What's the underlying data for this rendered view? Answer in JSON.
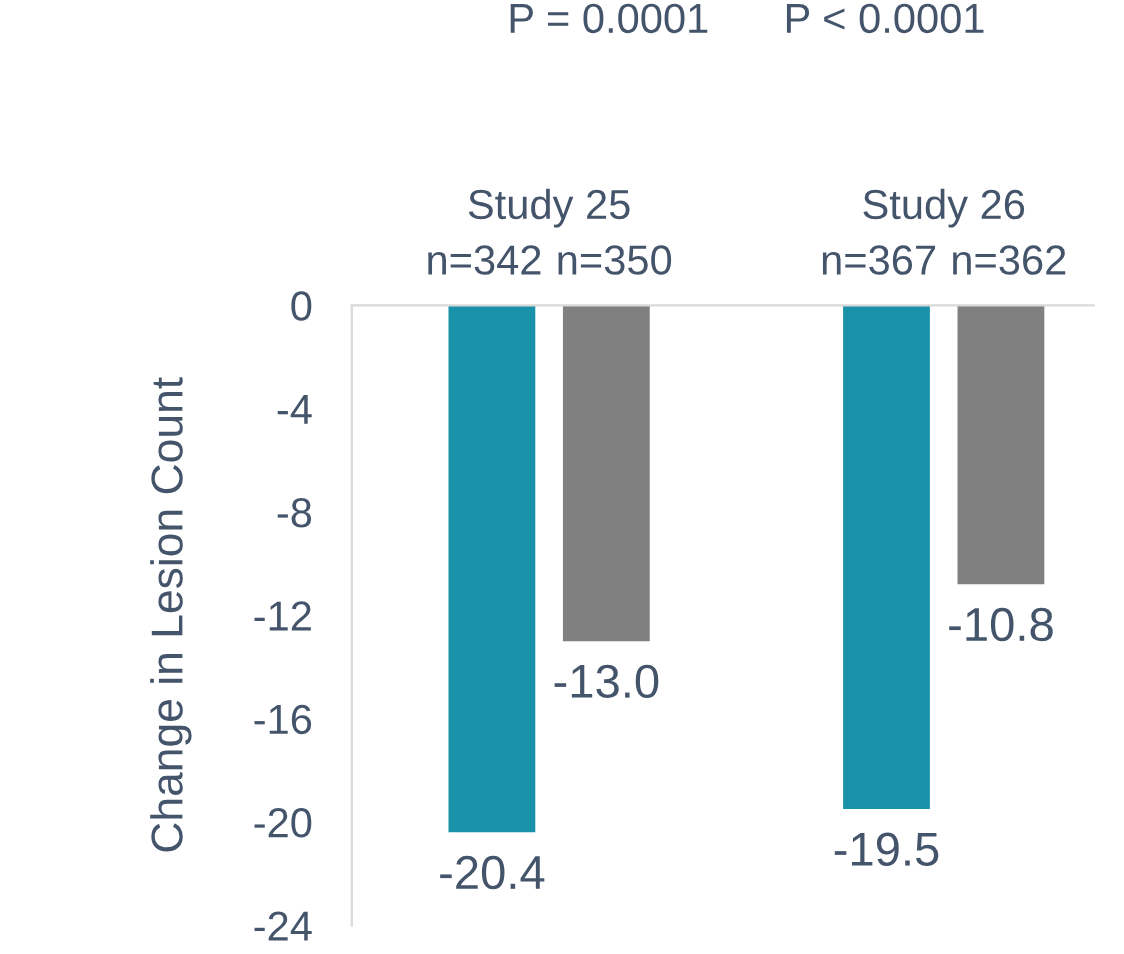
{
  "chart_data": {
    "type": "bar",
    "ylabel": "Change in Lesion Count",
    "categories": [
      "Study 25",
      "Study 26"
    ],
    "series": [
      {
        "color": "#1a93aa",
        "values": [
          -20.4,
          -19.5
        ]
      },
      {
        "color": "#808080",
        "values": [
          -13.0,
          -10.8
        ]
      }
    ],
    "value_labels": [
      [
        "-20.4",
        "-19.5"
      ],
      [
        "-13.0",
        "-10.8"
      ]
    ],
    "ylim": [
      -24,
      0
    ],
    "yticks": [
      0,
      -4,
      -8,
      -12,
      -16,
      -20,
      -24
    ],
    "annotations": [
      "P = 0.0001",
      "P < 0.0001",
      "n=342",
      "n=350",
      "n=367",
      "n=362"
    ],
    "grid": false,
    "legend": false
  }
}
